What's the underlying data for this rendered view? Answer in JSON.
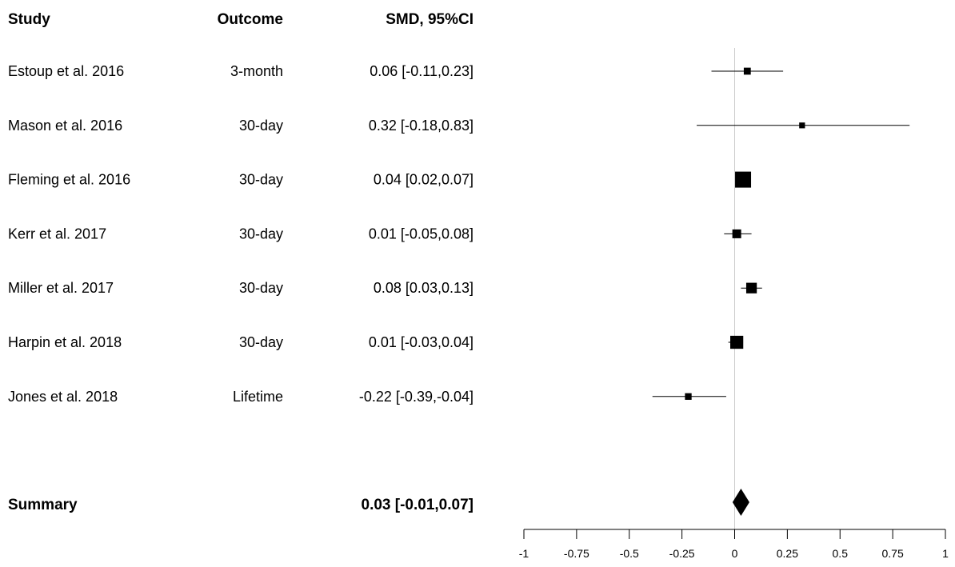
{
  "chart_data": {
    "type": "forest",
    "headers": {
      "study": "Study",
      "outcome": "Outcome",
      "effect": "SMD, 95%CI"
    },
    "studies": [
      {
        "study": "Estoup et al. 2016",
        "outcome": "3-month",
        "label": "0.06 [-0.11,0.23]",
        "est": 0.06,
        "lo": -0.11,
        "hi": 0.23,
        "weight": 0.25
      },
      {
        "study": "Mason et al. 2016",
        "outcome": "30-day",
        "label": "0.32 [-0.18,0.83]",
        "est": 0.32,
        "lo": -0.18,
        "hi": 0.83,
        "weight": 0.15
      },
      {
        "study": "Fleming et al. 2016",
        "outcome": "30-day",
        "label": "0.04 [0.02,0.07]",
        "est": 0.04,
        "lo": 0.02,
        "hi": 0.07,
        "weight": 1.0
      },
      {
        "study": "Kerr et al. 2017",
        "outcome": "30-day",
        "label": "0.01 [-0.05,0.08]",
        "est": 0.01,
        "lo": -0.05,
        "hi": 0.08,
        "weight": 0.4
      },
      {
        "study": "Miller et al. 2017",
        "outcome": "30-day",
        "label": "0.08 [0.03,0.13]",
        "est": 0.08,
        "lo": 0.03,
        "hi": 0.13,
        "weight": 0.55
      },
      {
        "study": "Harpin et al. 2018",
        "outcome": "30-day",
        "label": "0.01 [-0.03,0.04]",
        "est": 0.01,
        "lo": -0.03,
        "hi": 0.04,
        "weight": 0.75
      },
      {
        "study": "Jones et al. 2018",
        "outcome": "Lifetime",
        "label": "-0.22 [-0.39,-0.04]",
        "est": -0.22,
        "lo": -0.39,
        "hi": -0.04,
        "weight": 0.22
      }
    ],
    "summary": {
      "label": "Summary",
      "effect_label": "0.03 [-0.01,0.07]",
      "est": 0.03,
      "lo": -0.01,
      "hi": 0.07
    },
    "xlim": [
      -1,
      1
    ],
    "ticks": [
      -1,
      -0.75,
      -0.5,
      -0.25,
      0,
      0.25,
      0.5,
      0.75,
      1
    ],
    "tick_labels": [
      "-1",
      "-0.75",
      "-0.5",
      "-0.25",
      "0",
      "0.25",
      "0.5",
      "0.75",
      "1"
    ],
    "reference_line": 0
  }
}
